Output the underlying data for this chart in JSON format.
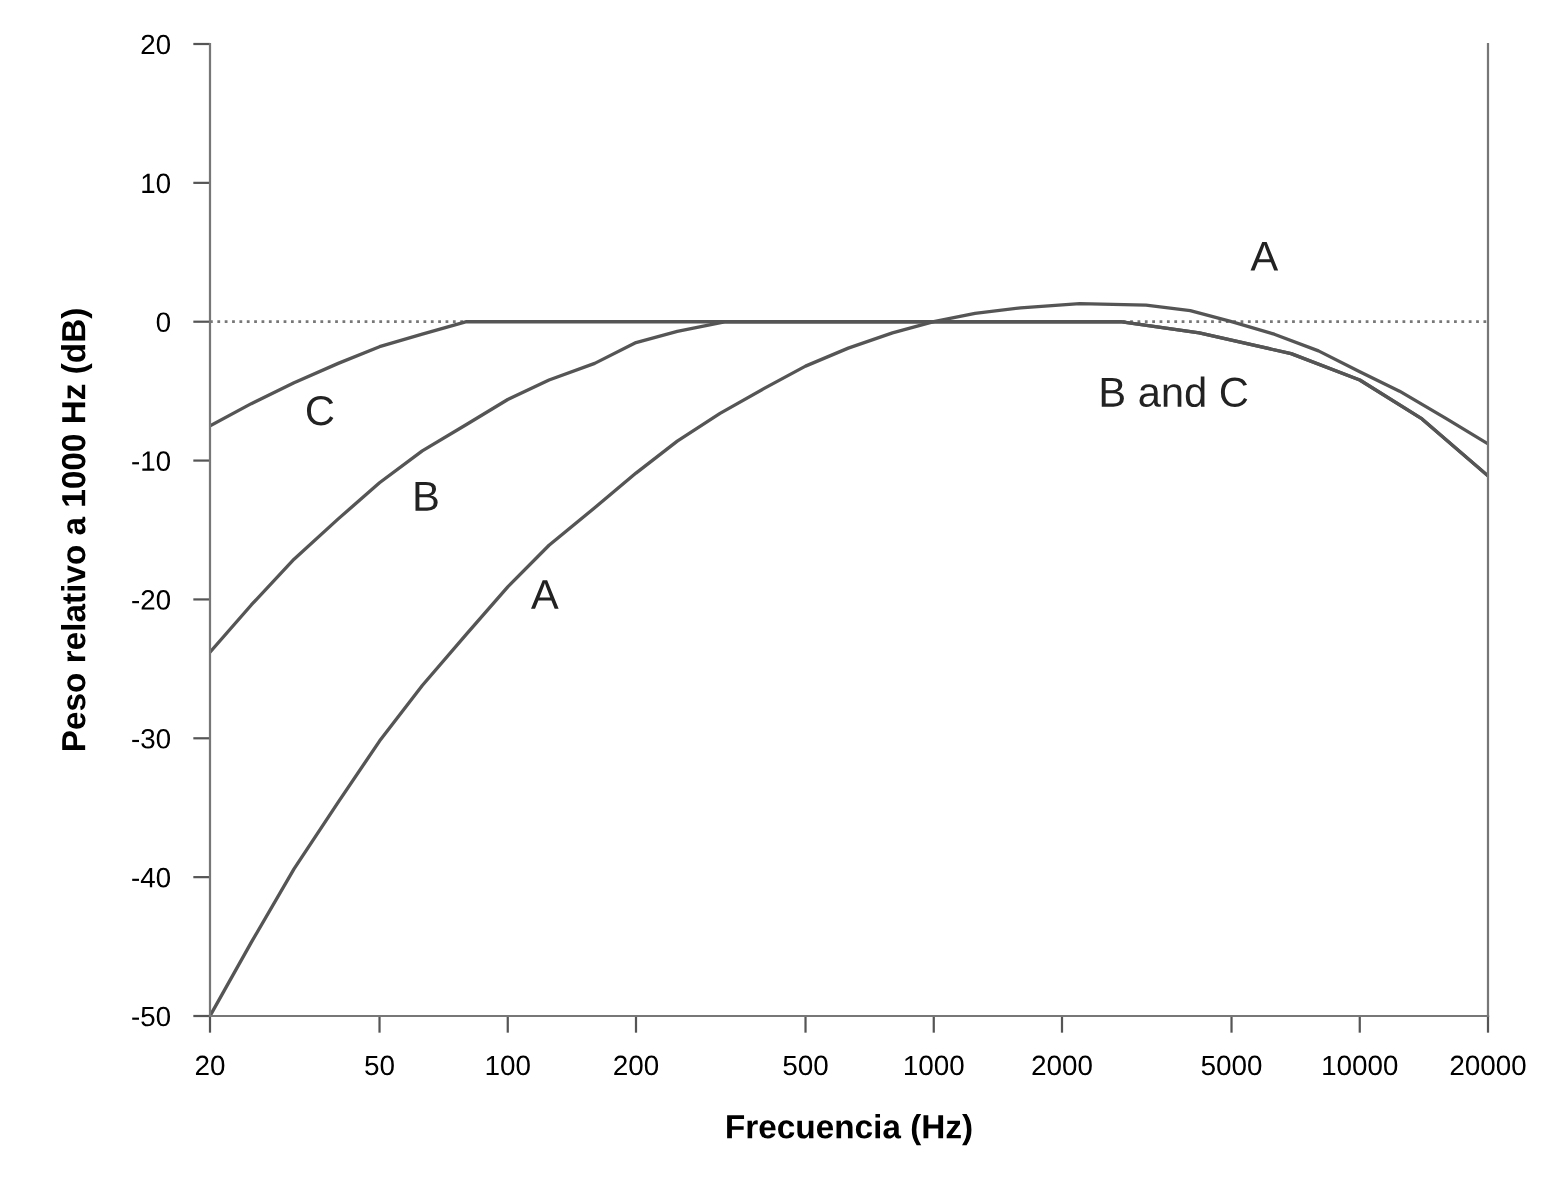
{
  "chart_data": {
    "type": "line",
    "xlabel": "Frecuencia (Hz)",
    "ylabel": "Peso relativo a 1000 Hz (dB)",
    "log": "x",
    "xlim": [
      20,
      20000
    ],
    "xticks": [
      20,
      50,
      100,
      200,
      500,
      1000,
      2000,
      5000,
      10000,
      20000
    ],
    "ylim": [
      -50,
      20
    ],
    "yticks": [
      -50,
      -40,
      -30,
      -20,
      -10,
      0,
      10,
      20
    ],
    "grid": false,
    "legend": false,
    "marker": "none",
    "line_style": "solid",
    "series": [
      {
        "color": "#555555",
        "x": [
          20,
          25,
          31.5,
          40,
          50,
          63,
          80,
          100,
          125,
          160,
          200,
          250,
          315,
          400,
          500,
          630,
          800,
          1000,
          1250,
          1600,
          2200,
          3150,
          4000,
          5000,
          6300,
          8000,
          10000,
          12400,
          16000,
          20000
        ],
        "values": [
          -50,
          -44.7,
          -39.4,
          -34.6,
          -30.2,
          -26.2,
          -22.5,
          -19.1,
          -16.1,
          -13.4,
          -10.9,
          -8.6,
          -6.6,
          -4.8,
          -3.2,
          -1.9,
          -0.8,
          0,
          0.6,
          1.0,
          1.3,
          1.2,
          0.8,
          0,
          -0.9,
          -2.1,
          -3.6,
          -5.0,
          -7.0,
          -8.8
        ]
      },
      {
        "color": "#555555",
        "x": [
          20,
          25,
          31.5,
          40,
          50,
          63,
          80,
          100,
          125,
          160,
          200,
          250,
          325,
          2740,
          4200,
          6900,
          10000,
          14000,
          20000
        ],
        "values": [
          -23.8,
          -20.4,
          -17.1,
          -14.2,
          -11.6,
          -9.3,
          -7.4,
          -5.6,
          -4.2,
          -3.0,
          -1.5,
          -0.7,
          0,
          0,
          -0.8,
          -2.3,
          -4.2,
          -7,
          -11.1
        ]
      },
      {
        "color": "#555555",
        "x": [
          20,
          25,
          31.5,
          40,
          50,
          63,
          80,
          2740,
          4200,
          6900,
          10000,
          14000,
          20000
        ],
        "values": [
          -7.5,
          -5.9,
          -4.4,
          -3.0,
          -1.8,
          -0.9,
          0,
          0,
          -0.8,
          -2.3,
          -4.2,
          -7,
          -11.1
        ]
      }
    ],
    "ref_lines": [
      {
        "axis": "y",
        "value": 0,
        "color": "#777777",
        "line_style": "dotted"
      }
    ],
    "annotations": [
      "C",
      "B",
      "A",
      "A",
      "B and C"
    ]
  }
}
